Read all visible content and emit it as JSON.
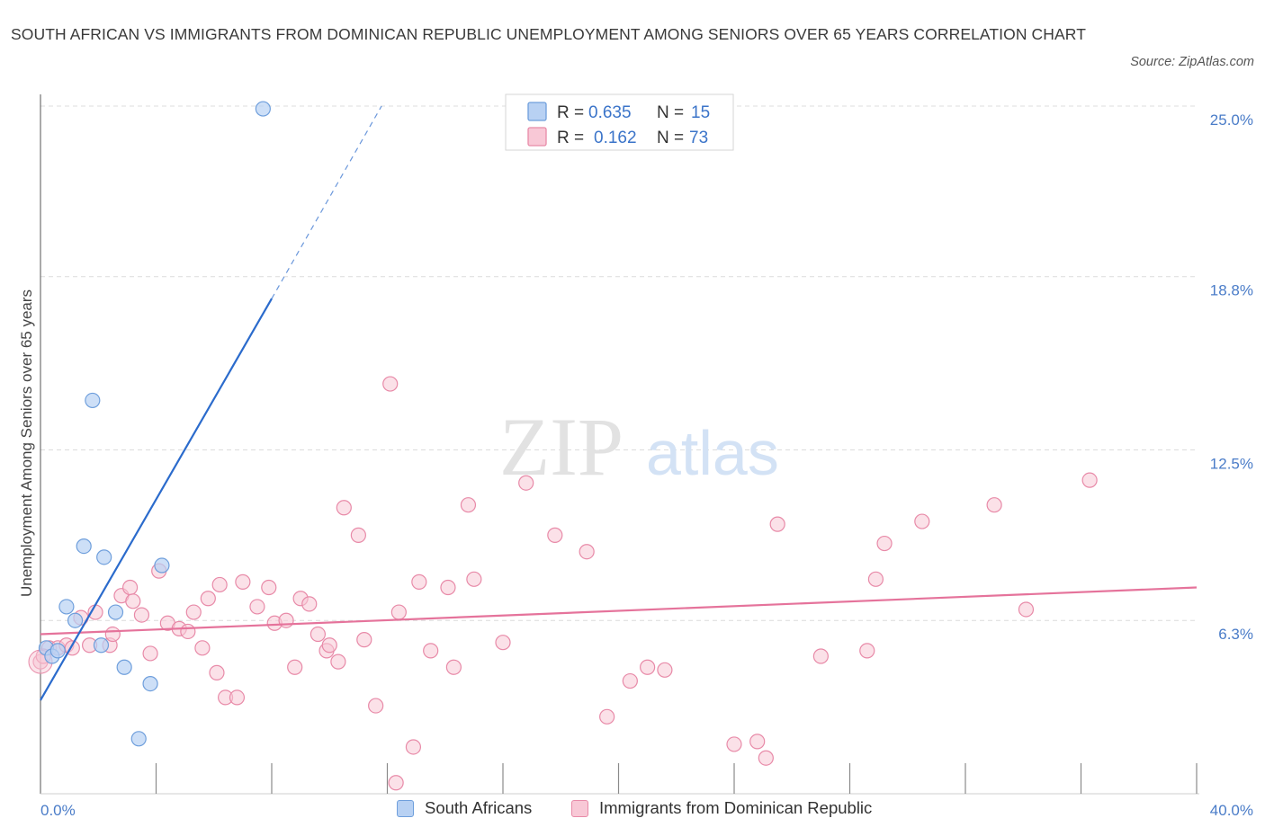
{
  "title": "SOUTH AFRICAN VS IMMIGRANTS FROM DOMINICAN REPUBLIC UNEMPLOYMENT AMONG SENIORS OVER 65 YEARS CORRELATION CHART",
  "source": "Source: ZipAtlas.com",
  "watermark": {
    "zip": "ZIP",
    "atlas": "atlas"
  },
  "colors": {
    "blue_fill": "#b8d1f3",
    "blue_stroke": "#6f9fdc",
    "blue_line": "#2b6bcc",
    "pink_fill": "#f8c8d6",
    "pink_stroke": "#e88aa8",
    "pink_line": "#e5739b",
    "tick_text": "#4a7cc8",
    "grid": "#dcdcdc"
  },
  "legend": {
    "r_label": "R =",
    "n_label": "N =",
    "series": [
      {
        "r": "0.635",
        "n": "15"
      },
      {
        "r": "0.162",
        "n": "73"
      }
    ]
  },
  "bottom_legend": [
    "South Africans",
    "Immigrants from Dominican Republic"
  ],
  "chart_data": {
    "type": "scatter",
    "title": "SOUTH AFRICAN VS IMMIGRANTS FROM DOMINICAN REPUBLIC UNEMPLOYMENT AMONG SENIORS OVER 65 YEARS CORRELATION CHART",
    "xlabel": "",
    "ylabel": "Unemployment Among Seniors over 65 years",
    "xlim": [
      0,
      40
    ],
    "ylim": [
      0,
      25
    ],
    "x_tick_labels": [
      "0.0%",
      "40.0%"
    ],
    "y_ticks": [
      6.3,
      12.5,
      18.8,
      25.0
    ],
    "y_tick_labels": [
      "6.3%",
      "12.5%",
      "18.8%",
      "25.0%"
    ],
    "grid": true,
    "series": [
      {
        "name": "South Africans",
        "R": 0.635,
        "N": 15,
        "points": [
          [
            0.2,
            5.3
          ],
          [
            0.4,
            5.0
          ],
          [
            0.6,
            5.2
          ],
          [
            0.9,
            6.8
          ],
          [
            1.2,
            6.3
          ],
          [
            1.5,
            9.0
          ],
          [
            1.8,
            14.3
          ],
          [
            2.1,
            5.4
          ],
          [
            2.2,
            8.6
          ],
          [
            2.6,
            6.6
          ],
          [
            2.9,
            4.6
          ],
          [
            3.4,
            2.0
          ],
          [
            3.8,
            4.0
          ],
          [
            4.2,
            8.3
          ],
          [
            7.7,
            24.9
          ]
        ],
        "trend": {
          "x0": 0,
          "y0": 3.4,
          "x1": 8.0,
          "y1": 18.0,
          "dash_x1": 11.8,
          "dash_y1": 25.0
        }
      },
      {
        "name": "Immigrants from Dominican Republic",
        "R": 0.162,
        "N": 73,
        "points": [
          [
            0.0,
            4.8
          ],
          [
            0.3,
            5.3
          ],
          [
            0.6,
            5.3
          ],
          [
            0.9,
            5.4
          ],
          [
            1.1,
            5.3
          ],
          [
            1.4,
            6.4
          ],
          [
            1.7,
            5.4
          ],
          [
            1.9,
            6.6
          ],
          [
            2.4,
            5.4
          ],
          [
            2.5,
            5.8
          ],
          [
            2.8,
            7.2
          ],
          [
            3.1,
            7.5
          ],
          [
            3.2,
            7.0
          ],
          [
            3.5,
            6.5
          ],
          [
            3.8,
            5.1
          ],
          [
            4.1,
            8.1
          ],
          [
            4.4,
            6.2
          ],
          [
            4.8,
            6.0
          ],
          [
            5.1,
            5.9
          ],
          [
            5.3,
            6.6
          ],
          [
            5.6,
            5.3
          ],
          [
            5.8,
            7.1
          ],
          [
            6.1,
            4.4
          ],
          [
            6.2,
            7.6
          ],
          [
            6.4,
            3.5
          ],
          [
            6.8,
            3.5
          ],
          [
            7.0,
            7.7
          ],
          [
            7.5,
            6.8
          ],
          [
            7.9,
            7.5
          ],
          [
            8.1,
            6.2
          ],
          [
            8.5,
            6.3
          ],
          [
            8.8,
            4.6
          ],
          [
            9.0,
            7.1
          ],
          [
            9.3,
            6.9
          ],
          [
            9.6,
            5.8
          ],
          [
            9.9,
            5.2
          ],
          [
            10.0,
            5.4
          ],
          [
            10.3,
            4.8
          ],
          [
            10.5,
            10.4
          ],
          [
            11.0,
            9.4
          ],
          [
            11.2,
            5.6
          ],
          [
            11.6,
            3.2
          ],
          [
            12.1,
            14.9
          ],
          [
            12.3,
            0.4
          ],
          [
            12.4,
            6.6
          ],
          [
            12.9,
            1.7
          ],
          [
            13.1,
            7.7
          ],
          [
            13.5,
            5.2
          ],
          [
            14.1,
            7.5
          ],
          [
            14.3,
            4.6
          ],
          [
            14.8,
            10.5
          ],
          [
            15.0,
            7.8
          ],
          [
            16.0,
            5.5
          ],
          [
            16.8,
            11.3
          ],
          [
            17.8,
            9.4
          ],
          [
            18.9,
            8.8
          ],
          [
            19.6,
            2.8
          ],
          [
            20.4,
            4.1
          ],
          [
            21.0,
            4.6
          ],
          [
            21.6,
            4.5
          ],
          [
            24.0,
            1.8
          ],
          [
            24.8,
            1.9
          ],
          [
            25.1,
            1.3
          ],
          [
            25.5,
            9.8
          ],
          [
            27.0,
            5.0
          ],
          [
            28.6,
            5.2
          ],
          [
            28.9,
            7.8
          ],
          [
            29.2,
            9.1
          ],
          [
            30.5,
            9.9
          ],
          [
            33.0,
            10.5
          ],
          [
            34.1,
            6.7
          ],
          [
            36.3,
            11.4
          ],
          [
            0.1,
            5.0
          ]
        ],
        "trend": {
          "x0": 0,
          "y0": 5.8,
          "x1": 40,
          "y1": 7.5
        }
      }
    ]
  }
}
